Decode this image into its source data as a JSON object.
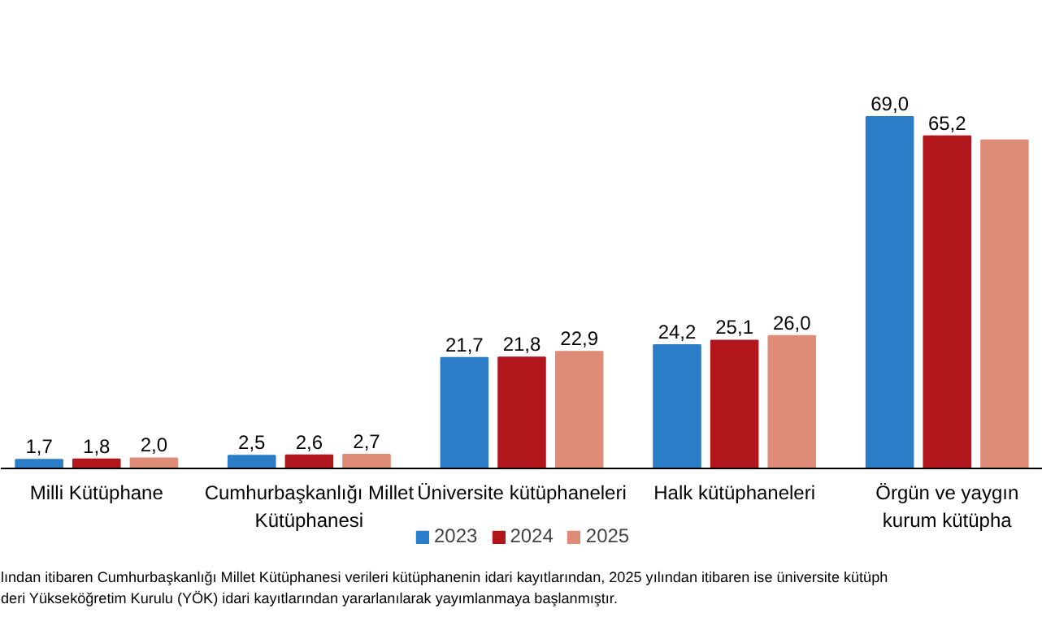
{
  "chart_data": {
    "type": "bar",
    "categories": [
      "Milli Kütüphane",
      "Cumhurbaşkanlığı Millet\nKütüphanesi",
      "Üniversite kütüphaneleri",
      "Halk kütüphaneleri",
      "Örgün ve yaygın\nkurum kütüpha"
    ],
    "series": [
      {
        "name": "2023",
        "color": "#2a7dc6",
        "values": [
          1.7,
          2.5,
          21.7,
          24.2,
          69.0
        ],
        "value_labels": [
          "1,7",
          "2,5",
          "21,7",
          "24,2",
          "69,0"
        ]
      },
      {
        "name": "2024",
        "color": "#b0161b",
        "values": [
          1.8,
          2.6,
          21.8,
          25.1,
          65.2
        ],
        "value_labels": [
          "1,8",
          "2,6",
          "21,8",
          "25,1",
          "65,2"
        ]
      },
      {
        "name": "2025",
        "color": "#de8b78",
        "values": [
          2.0,
          2.7,
          22.9,
          26.0,
          64.4
        ],
        "value_labels": [
          "2,0",
          "2,7",
          "22,9",
          "26,0",
          null
        ]
      }
    ],
    "legend": "bottom",
    "annotations": [
      "lından itibaren Cumhurbaşkanlığı Millet Kütüphanesi verileri kütüphanenin idari kayıtlarından, 2025 yılından itibaren ise üniversite kütüph",
      "deri Yükseköğretim Kurulu (YÖK) idari kayıtlarından yararlanılarak yayımlanmaya başlanmıştır."
    ]
  }
}
